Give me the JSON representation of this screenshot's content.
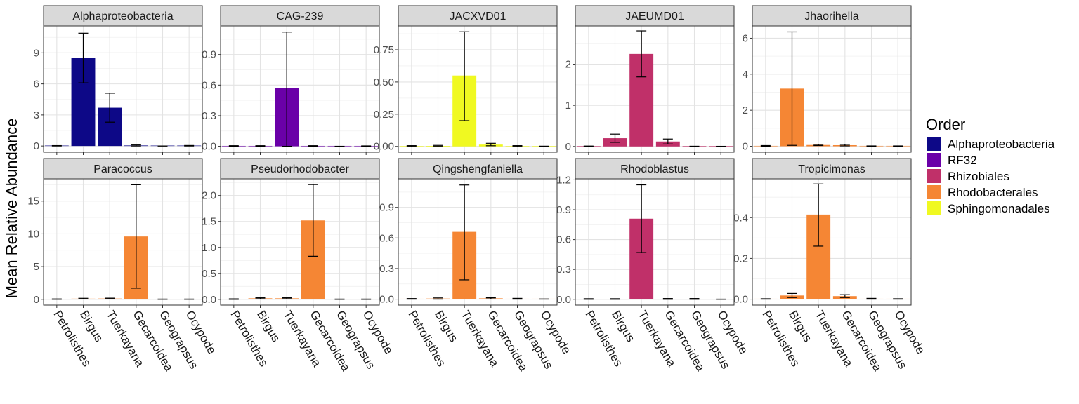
{
  "chart_data": {
    "type": "bar",
    "ylabel": "Mean Relative Abundance",
    "categories": [
      "Petrolisthes",
      "Birgus",
      "Tuerkayana",
      "Gecarcoidea",
      "Geograpsus",
      "Ocypode"
    ],
    "legend": {
      "title": "Order",
      "placement": "right",
      "entries": [
        {
          "name": "Alphaproteobacteria",
          "color": "#0d0887"
        },
        {
          "name": "RF32",
          "color": "#6a00a8"
        },
        {
          "name": "Rhizobiales",
          "color": "#c03069"
        },
        {
          "name": "Rhodobacterales",
          "color": "#f58634"
        },
        {
          "name": "Sphingomonadales",
          "color": "#f0f921"
        }
      ]
    },
    "grid": true,
    "panels": [
      {
        "title": "Alphaproteobacteria",
        "order": "Alphaproteobacteria",
        "ylim": [
          -0.6,
          11.6
        ],
        "yticks": [
          0,
          3,
          6,
          9
        ],
        "ytick_labels": [
          "0",
          "3",
          "6",
          "9"
        ],
        "values": [
          0.02,
          8.5,
          3.7,
          0.05,
          0.0,
          0.03
        ],
        "errors": [
          [
            0.0,
            0.04
          ],
          [
            6.1,
            10.9
          ],
          [
            2.3,
            5.1
          ],
          [
            0.0,
            0.1
          ],
          [
            0.0,
            0.0
          ],
          [
            0.0,
            0.05
          ]
        ]
      },
      {
        "title": "CAG-239",
        "order": "RF32",
        "ylim": [
          -0.058,
          1.18
        ],
        "yticks": [
          0,
          0.3,
          0.6,
          0.9
        ],
        "ytick_labels": [
          "0.0",
          "0.3",
          "0.6",
          "0.9"
        ],
        "values": [
          0.003,
          0.003,
          0.57,
          0.003,
          0.0,
          0.002
        ],
        "errors": [
          [
            0.0,
            0.006
          ],
          [
            0.0,
            0.006
          ],
          [
            0.0,
            1.12
          ],
          [
            0.0,
            0.006
          ],
          [
            0.0,
            0.0
          ],
          [
            0.0,
            0.004
          ]
        ]
      },
      {
        "title": "JACXVD01",
        "order": "Sphingomonadales",
        "ylim": [
          -0.045,
          0.935
        ],
        "yticks": [
          0,
          0.25,
          0.5,
          0.75
        ],
        "ytick_labels": [
          "0.00",
          "0.25",
          "0.50",
          "0.75"
        ],
        "values": [
          0.003,
          0.004,
          0.55,
          0.014,
          0.003,
          0.001
        ],
        "errors": [
          [
            0.0,
            0.006
          ],
          [
            0.0,
            0.008
          ],
          [
            0.2,
            0.89
          ],
          [
            0.005,
            0.024
          ],
          [
            0.0,
            0.006
          ],
          [
            0.0,
            0.002
          ]
        ]
      },
      {
        "title": "JAEUMD01",
        "order": "Rhizobiales",
        "ylim": [
          -0.14,
          2.93
        ],
        "yticks": [
          0,
          1,
          2
        ],
        "ytick_labels": [
          "0",
          "1",
          "2"
        ],
        "values": [
          0.005,
          0.2,
          2.25,
          0.12,
          0.003,
          0.002
        ],
        "errors": [
          [
            0.0,
            0.01
          ],
          [
            0.1,
            0.3
          ],
          [
            1.69,
            2.81
          ],
          [
            0.06,
            0.18
          ],
          [
            0.0,
            0.006
          ],
          [
            0.0,
            0.004
          ]
        ]
      },
      {
        "title": "Jhaorihella",
        "order": "Rhodobacterales",
        "ylim": [
          -0.33,
          6.68
        ],
        "yticks": [
          0,
          2,
          4,
          6
        ],
        "ytick_labels": [
          "0",
          "2",
          "4",
          "6"
        ],
        "values": [
          0.02,
          3.2,
          0.07,
          0.06,
          0.01,
          0.01
        ],
        "errors": [
          [
            0.0,
            0.04
          ],
          [
            0.05,
            6.35
          ],
          [
            0.04,
            0.1
          ],
          [
            0.02,
            0.1
          ],
          [
            0.0,
            0.02
          ],
          [
            0.0,
            0.02
          ]
        ]
      },
      {
        "title": "Paracoccus",
        "order": "Rhodobacterales",
        "ylim": [
          -0.88,
          18.4
        ],
        "yticks": [
          0,
          5,
          10,
          15
        ],
        "ytick_labels": [
          "0",
          "5",
          "10",
          "15"
        ],
        "values": [
          0.03,
          0.1,
          0.12,
          9.6,
          0.02,
          0.02
        ],
        "errors": [
          [
            0.0,
            0.06
          ],
          [
            0.04,
            0.16
          ],
          [
            0.06,
            0.18
          ],
          [
            1.7,
            17.5
          ],
          [
            0.0,
            0.04
          ],
          [
            0.0,
            0.04
          ]
        ]
      },
      {
        "title": "Pseudorhodobacter",
        "order": "Rhodobacterales",
        "ylim": [
          -0.11,
          2.32
        ],
        "yticks": [
          0,
          0.5,
          1.0,
          1.5,
          2.0
        ],
        "ytick_labels": [
          "0.0",
          "0.5",
          "1.0",
          "1.5",
          "2.0"
        ],
        "values": [
          0.005,
          0.02,
          0.02,
          1.52,
          0.003,
          0.003
        ],
        "errors": [
          [
            0.0,
            0.01
          ],
          [
            0.01,
            0.03
          ],
          [
            0.01,
            0.03
          ],
          [
            0.83,
            2.21
          ],
          [
            0.0,
            0.006
          ],
          [
            0.0,
            0.006
          ]
        ]
      },
      {
        "title": "Qingshengfaniella",
        "order": "Rhodobacterales",
        "ylim": [
          -0.058,
          1.18
        ],
        "yticks": [
          0,
          0.3,
          0.6,
          0.9
        ],
        "ytick_labels": [
          "0.0",
          "0.3",
          "0.6",
          "0.9"
        ],
        "values": [
          0.003,
          0.006,
          0.66,
          0.008,
          0.004,
          0.001
        ],
        "errors": [
          [
            0.0,
            0.006
          ],
          [
            0.0,
            0.012
          ],
          [
            0.19,
            1.12
          ],
          [
            0.002,
            0.014
          ],
          [
            0.0,
            0.008
          ],
          [
            0.0,
            0.002
          ]
        ]
      },
      {
        "title": "Rhodoblastus",
        "order": "Rhizobiales",
        "ylim": [
          -0.058,
          1.21
        ],
        "yticks": [
          0,
          0.3,
          0.6,
          0.9,
          1.2
        ],
        "ytick_labels": [
          "0.0",
          "0.3",
          "0.6",
          "0.9",
          "1.2"
        ],
        "values": [
          0.003,
          0.003,
          0.81,
          0.004,
          0.004,
          0.001
        ],
        "errors": [
          [
            0.0,
            0.006
          ],
          [
            0.0,
            0.006
          ],
          [
            0.47,
            1.15
          ],
          [
            0.0,
            0.008
          ],
          [
            0.0,
            0.008
          ],
          [
            0.0,
            0.002
          ]
        ]
      },
      {
        "title": "Tropicimonas",
        "order": "Rhodobacterales",
        "ylim": [
          -0.029,
          0.59
        ],
        "yticks": [
          0,
          0.2,
          0.4
        ],
        "ytick_labels": [
          "0.0",
          "0.2",
          "0.4"
        ],
        "values": [
          0.001,
          0.018,
          0.415,
          0.015,
          0.002,
          0.001
        ],
        "errors": [
          [
            0.0,
            0.002
          ],
          [
            0.008,
            0.028
          ],
          [
            0.26,
            0.565
          ],
          [
            0.008,
            0.022
          ],
          [
            0.0,
            0.004
          ],
          [
            0.0,
            0.002
          ]
        ]
      }
    ]
  }
}
